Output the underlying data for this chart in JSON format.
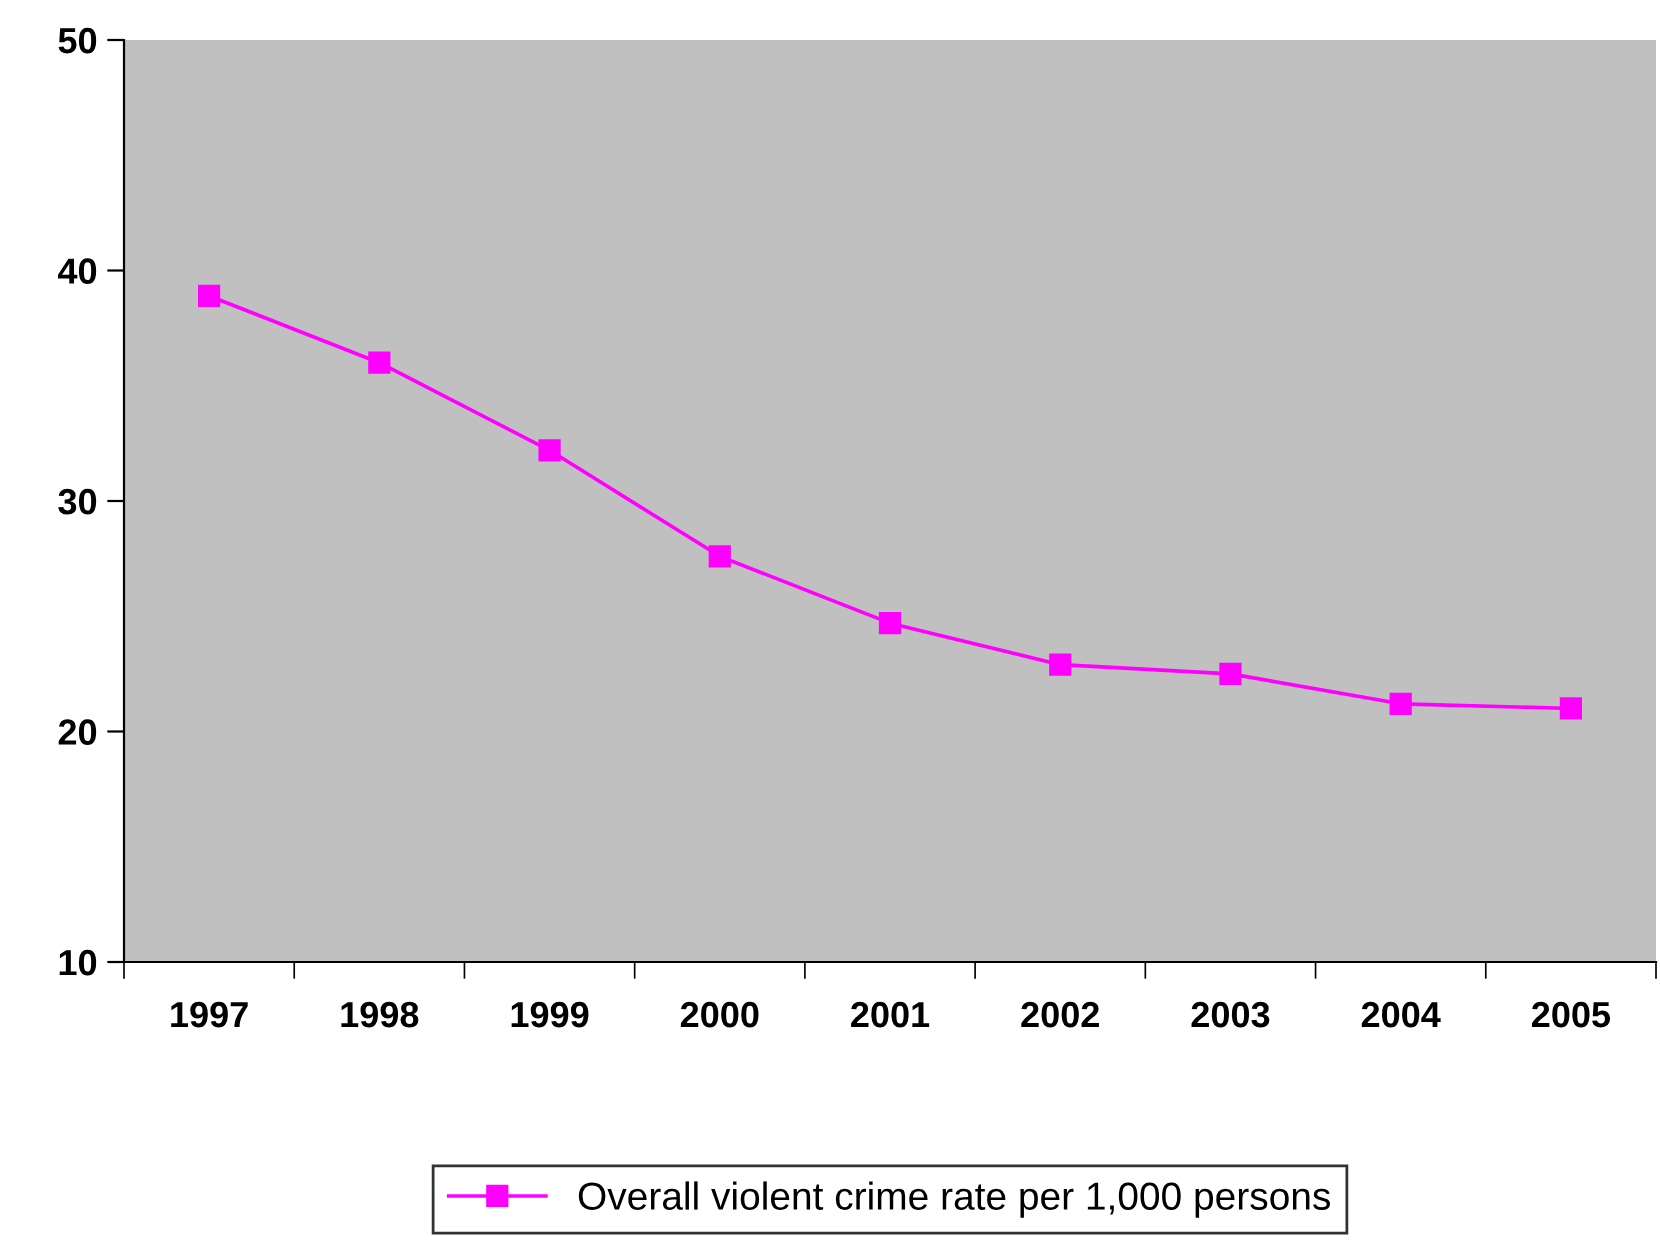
{
  "chart_data": {
    "type": "line",
    "categories": [
      "1997",
      "1998",
      "1999",
      "2000",
      "2001",
      "2002",
      "2003",
      "2004",
      "2005"
    ],
    "series": [
      {
        "name": "Overall violent crime rate per 1,000 persons",
        "color": "#ff00ff",
        "values": [
          38.9,
          36.0,
          32.2,
          27.6,
          24.7,
          22.9,
          22.5,
          21.2,
          21.0
        ]
      }
    ],
    "ylim": [
      10,
      50
    ],
    "yticks": [
      10,
      20,
      30,
      40,
      50
    ],
    "grid": false,
    "legend": "bottom",
    "marker": "square",
    "line_style": "solid"
  }
}
